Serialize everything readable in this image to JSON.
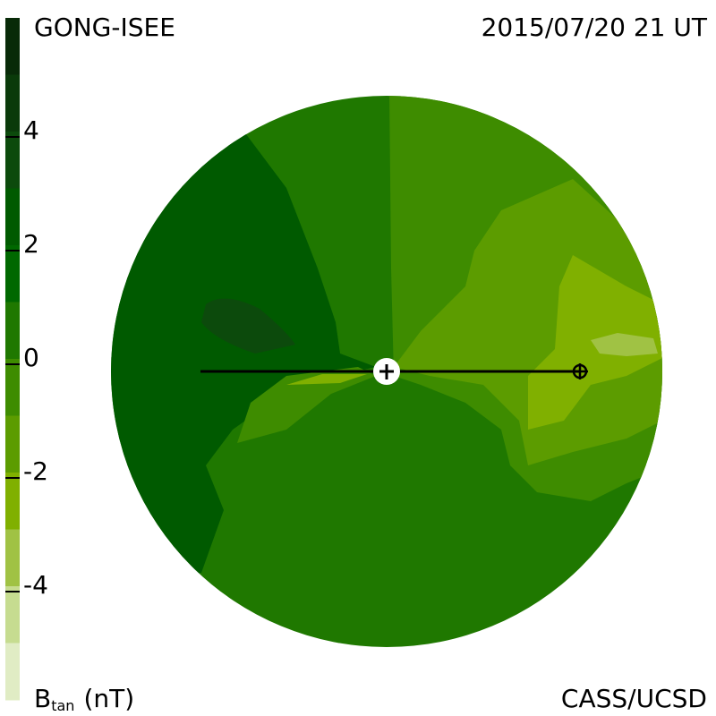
{
  "header": {
    "left": "GONG-ISEE",
    "right": "2015/07/20 21 UT"
  },
  "footer": {
    "right": "CASS/UCSD"
  },
  "colorbar": {
    "label": "B",
    "label_sub": "tan",
    "unit": "(nT)",
    "lim": [
      -6,
      6
    ],
    "ticks": [
      4,
      2,
      0,
      -2,
      -4
    ],
    "colors": [
      "#082a08",
      "#0a3a0a",
      "#0c4a0c",
      "#005a00",
      "#006800",
      "#1f7800",
      "#3e8c00",
      "#5c9c00",
      "#80b000",
      "#a0c244",
      "#c6dc90",
      "#e0ecc4"
    ]
  }
}
